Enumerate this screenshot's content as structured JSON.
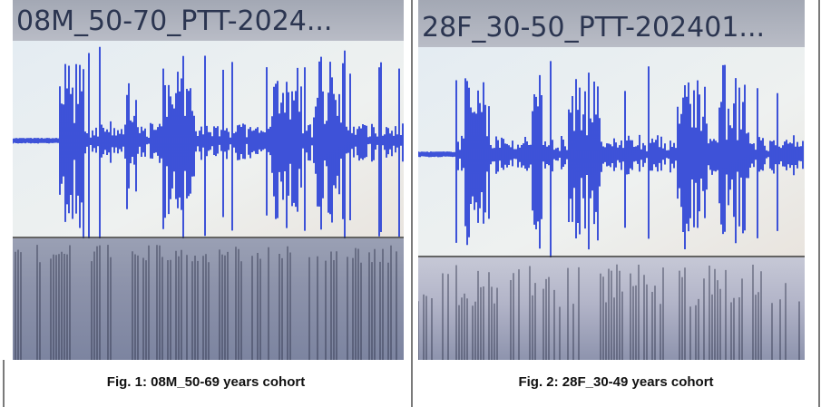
{
  "panels": [
    {
      "title": "08M_50-70_PTT-2024...",
      "caption": "Fig. 1: 08M_50-69 years cohort"
    },
    {
      "title": "28F_30-50_PTT-202401...",
      "caption": "Fig. 2: 28F_30-49 years cohort"
    }
  ]
}
